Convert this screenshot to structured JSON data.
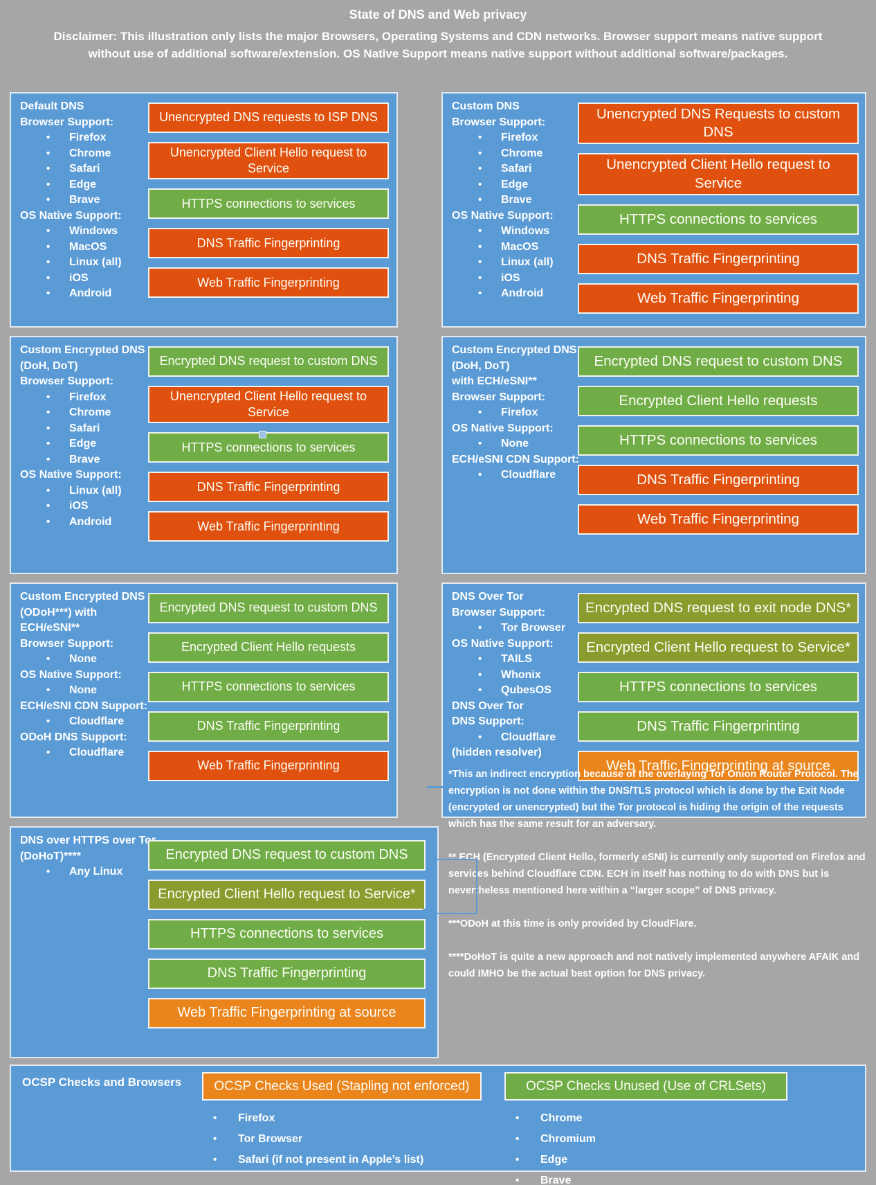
{
  "header": {
    "title": "State of DNS and Web privacy",
    "disclaimer": "Disclaimer: This illustration only lists the major Browsers, Operating Systems and CDN networks. Browser support means native support without use of additional software/extension. OS Native Support means native support without additional software/packages."
  },
  "colors": {
    "background_gray": "#a6a6a6",
    "panel_blue": "#5b9bd5",
    "box_red": "#e0500f",
    "box_green": "#70ad47",
    "box_olive": "#8b9b2d",
    "box_amber": "#ea851d"
  },
  "panels": [
    {
      "id": "p1",
      "labels": [
        {
          "t": "Default DNS"
        },
        {
          "t": "Browser Support:"
        },
        {
          "t": "Firefox",
          "b": true
        },
        {
          "t": "Chrome",
          "b": true
        },
        {
          "t": "Safari",
          "b": true
        },
        {
          "t": "Edge",
          "b": true
        },
        {
          "t": "Brave",
          "b": true
        },
        {
          "t": "OS Native Support:"
        },
        {
          "t": "Windows",
          "b": true
        },
        {
          "t": "MacOS",
          "b": true
        },
        {
          "t": "Linux (all)",
          "b": true
        },
        {
          "t": "iOS",
          "b": true
        },
        {
          "t": "Android",
          "b": true
        }
      ],
      "boxes": [
        {
          "t": "Unencrypted DNS requests to ISP DNS",
          "tone": "red"
        },
        {
          "t": "Unencrypted Client Hello request to Service",
          "tone": "red"
        },
        {
          "t": "HTTPS connections to services",
          "tone": "green"
        },
        {
          "t": "DNS Traffic Fingerprinting",
          "tone": "red"
        },
        {
          "t": "Web Traffic Fingerprinting",
          "tone": "red"
        }
      ]
    },
    {
      "id": "p2",
      "labels": [
        {
          "t": "Custom DNS"
        },
        {
          "t": "Browser Support:"
        },
        {
          "t": "Firefox",
          "b": true
        },
        {
          "t": "Chrome",
          "b": true
        },
        {
          "t": "Safari",
          "b": true
        },
        {
          "t": "Edge",
          "b": true
        },
        {
          "t": "Brave",
          "b": true
        },
        {
          "t": "OS Native Support:"
        },
        {
          "t": "Windows",
          "b": true
        },
        {
          "t": "MacOS",
          "b": true
        },
        {
          "t": "Linux (all)",
          "b": true
        },
        {
          "t": "iOS",
          "b": true
        },
        {
          "t": "Android",
          "b": true
        }
      ],
      "boxes": [
        {
          "t": "Unencrypted DNS Requests to custom DNS",
          "tone": "red"
        },
        {
          "t": "Unencrypted Client Hello request to Service",
          "tone": "red"
        },
        {
          "t": "HTTPS connections to services",
          "tone": "green"
        },
        {
          "t": "DNS Traffic Fingerprinting",
          "tone": "red"
        },
        {
          "t": "Web Traffic Fingerprinting",
          "tone": "red"
        }
      ]
    },
    {
      "id": "p3",
      "labels": [
        {
          "t": "Custom Encrypted DNS"
        },
        {
          "t": "(DoH, DoT)"
        },
        {
          "t": "Browser Support:"
        },
        {
          "t": "Firefox",
          "b": true
        },
        {
          "t": "Chrome",
          "b": true
        },
        {
          "t": "Safari",
          "b": true
        },
        {
          "t": "Edge",
          "b": true
        },
        {
          "t": "Brave",
          "b": true
        },
        {
          "t": "OS Native Support:"
        },
        {
          "t": "Linux (all)",
          "b": true
        },
        {
          "t": "iOS",
          "b": true
        },
        {
          "t": "Android",
          "b": true
        }
      ],
      "boxes": [
        {
          "t": "Encrypted DNS request to custom DNS",
          "tone": "green"
        },
        {
          "t": "Unencrypted Client Hello request to Service",
          "tone": "red"
        },
        {
          "t": "HTTPS connections to services",
          "tone": "green"
        },
        {
          "t": "DNS Traffic Fingerprinting",
          "tone": "red"
        },
        {
          "t": "Web Traffic Fingerprinting",
          "tone": "red"
        }
      ]
    },
    {
      "id": "p4",
      "labels": [
        {
          "t": "Custom Encrypted DNS"
        },
        {
          "t": "(DoH, DoT)"
        },
        {
          "t": "with ECH/eSNI**"
        },
        {
          "t": "Browser Support:"
        },
        {
          "t": "Firefox",
          "b": true
        },
        {
          "t": "OS Native Support:"
        },
        {
          "t": "None",
          "b": true
        },
        {
          "t": "ECH/eSNI CDN Support:"
        },
        {
          "t": "Cloudflare",
          "b": true
        }
      ],
      "boxes": [
        {
          "t": "Encrypted DNS request to custom DNS",
          "tone": "green"
        },
        {
          "t": "Encrypted Client Hello requests",
          "tone": "green"
        },
        {
          "t": "HTTPS connections to services",
          "tone": "green"
        },
        {
          "t": "DNS Traffic Fingerprinting",
          "tone": "red"
        },
        {
          "t": "Web Traffic Fingerprinting",
          "tone": "red"
        }
      ]
    },
    {
      "id": "p5",
      "labels": [
        {
          "t": "Custom Encrypted DNS"
        },
        {
          "t": "(ODoH***) with"
        },
        {
          "t": "ECH/eSNI**"
        },
        {
          "t": "Browser Support:"
        },
        {
          "t": "None",
          "b": true
        },
        {
          "t": "OS Native Support:"
        },
        {
          "t": "None",
          "b": true
        },
        {
          "t": "ECH/eSNI CDN Support:"
        },
        {
          "t": "Cloudflare",
          "b": true
        },
        {
          "t": "ODoH DNS Support:"
        },
        {
          "t": "Cloudflare",
          "b": true
        }
      ],
      "boxes": [
        {
          "t": "Encrypted DNS request to custom DNS",
          "tone": "green"
        },
        {
          "t": "Encrypted Client Hello requests",
          "tone": "green"
        },
        {
          "t": "HTTPS connections to services",
          "tone": "green"
        },
        {
          "t": "DNS Traffic Fingerprinting",
          "tone": "green"
        },
        {
          "t": "Web Traffic Fingerprinting",
          "tone": "red"
        }
      ]
    },
    {
      "id": "p6",
      "labels": [
        {
          "t": "DNS Over Tor"
        },
        {
          "t": "Browser Support:"
        },
        {
          "t": "Tor Browser",
          "b": true
        },
        {
          "t": "OS Native Support:"
        },
        {
          "t": "TAILS",
          "b": true
        },
        {
          "t": "Whonix",
          "b": true
        },
        {
          "t": "QubesOS",
          "b": true
        },
        {
          "t": "DNS Over Tor"
        },
        {
          "t": "DNS Support:"
        },
        {
          "t": "Cloudflare",
          "b": true
        },
        {
          "t": "(hidden resolver)"
        }
      ],
      "boxes": [
        {
          "t": "Encrypted DNS request to exit node DNS*",
          "tone": "olive"
        },
        {
          "t": "Encrypted Client Hello request to Service*",
          "tone": "olive"
        },
        {
          "t": "HTTPS connections to services",
          "tone": "green"
        },
        {
          "t": "DNS Traffic Fingerprinting",
          "tone": "green"
        },
        {
          "t": "Web Traffic Fingerprinting at source",
          "tone": "amber"
        }
      ]
    },
    {
      "id": "p7",
      "labels": [
        {
          "t": "DNS over HTTPS over Tor"
        },
        {
          "t": "(DoHoT)****"
        },
        {
          "t": "Any Linux",
          "b": true
        }
      ],
      "boxes": [
        {
          "t": "Encrypted DNS request to custom DNS",
          "tone": "green"
        },
        {
          "t": "Encrypted Client Hello request to Service*",
          "tone": "olive"
        },
        {
          "t": "HTTPS connections to services",
          "tone": "green"
        },
        {
          "t": "DNS Traffic Fingerprinting",
          "tone": "green"
        },
        {
          "t": "Web Traffic Fingerprinting at source",
          "tone": "amber"
        }
      ]
    }
  ],
  "footnotes": [
    "*This an indirect encryption because of the overlaying Tor Onion Router Protocol. The encryption is not done within the DNS/TLS protocol which is done by the Exit Node (encrypted or unencrypted) but the Tor protocol is hiding the origin of the requests which has the same result for an adversary.",
    "** ECH (Encrypted Client Hello, formerly eSNI) is currently only suported on Firefox and services behind Cloudflare CDN. ECH in itself has nothing to do with DNS but is nevertheless mentioned here within a “larger scope” of DNS privacy.",
    "***ODoH at this time is only provided by CloudFlare.",
    "****DoHoT is quite a new approach and not natively implemented anywhere AFAIK and could IMHO be the actual best option for DNS privacy."
  ],
  "ocsp": {
    "label": "OCSP Checks and Browsers",
    "groups": [
      {
        "header": "OCSP Checks Used (Stapling not enforced)",
        "tone": "amber",
        "items": [
          "Firefox",
          "Tor Browser",
          "Safari (if not present in Apple’s list)"
        ]
      },
      {
        "header": "OCSP Checks Unused (Use of CRLSets)",
        "tone": "green",
        "items": [
          "Chrome",
          "Chromium",
          "Edge",
          "Brave"
        ]
      }
    ]
  }
}
